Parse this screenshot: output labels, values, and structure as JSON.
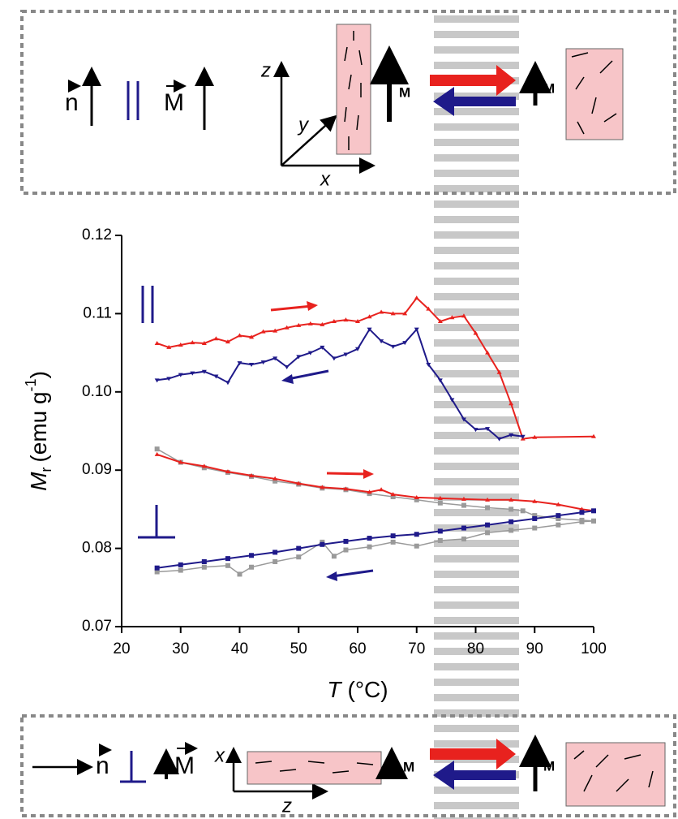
{
  "chart_data": {
    "type": "line",
    "xlabel": {
      "symbol": "T",
      "unit": "(°C)"
    },
    "ylabel": {
      "symbol": "M",
      "sub": "r",
      "unit": "(emu g",
      "sup": "-1",
      "close": ")"
    },
    "xlim": [
      20,
      100
    ],
    "ylim": [
      0.07,
      0.12
    ],
    "xticks": [
      20,
      30,
      40,
      50,
      60,
      70,
      80,
      90,
      100
    ],
    "yticks": [
      0.07,
      0.08,
      0.09,
      {
        "value": 0.1,
        "label": "0.10"
      },
      0.11,
      0.12
    ],
    "series": [
      {
        "color": "#e8221e",
        "marker": "triangle",
        "x": [
          26,
          28,
          30,
          32,
          34,
          36,
          38,
          40,
          42,
          44,
          46,
          48,
          50,
          52,
          54,
          56,
          58,
          60,
          62,
          64,
          66,
          68,
          70,
          72,
          74,
          76,
          78,
          80,
          82,
          84,
          86,
          88,
          90,
          100
        ],
        "values": [
          0.1062,
          0.1057,
          0.106,
          0.1063,
          0.1062,
          0.1068,
          0.1064,
          0.1072,
          0.107,
          0.1077,
          0.1078,
          0.1082,
          0.1085,
          0.1087,
          0.1086,
          0.109,
          0.1092,
          0.109,
          0.1096,
          0.1102,
          0.11,
          0.11,
          0.112,
          0.1106,
          0.109,
          0.1095,
          0.1097,
          0.1075,
          0.105,
          0.1025,
          0.0985,
          0.094,
          0.0942,
          0.0943
        ]
      },
      {
        "color": "#1f1a8a",
        "marker": "triangle-down",
        "x": [
          26,
          28,
          30,
          32,
          34,
          36,
          38,
          40,
          42,
          44,
          46,
          48,
          50,
          52,
          54,
          56,
          58,
          60,
          62,
          64,
          66,
          68,
          70,
          72,
          74,
          76,
          78,
          80,
          82,
          84,
          86,
          88
        ],
        "values": [
          0.1015,
          0.1017,
          0.1022,
          0.1024,
          0.1026,
          0.102,
          0.1012,
          0.1037,
          0.1035,
          0.1038,
          0.1043,
          0.1032,
          0.1045,
          0.105,
          0.1057,
          0.1043,
          0.1048,
          0.1055,
          0.108,
          0.1065,
          0.1058,
          0.1063,
          0.108,
          0.1035,
          0.1015,
          0.099,
          0.0965,
          0.0952,
          0.0953,
          0.094,
          0.0945,
          0.0943
        ]
      },
      {
        "color": "#9a9a9a",
        "marker": "square",
        "x": [
          26,
          30,
          34,
          38,
          42,
          46,
          50,
          54,
          58,
          62,
          66,
          70,
          74,
          78,
          82,
          86,
          88,
          90,
          94,
          98,
          100
        ],
        "values": [
          0.0927,
          0.091,
          0.0903,
          0.0897,
          0.0892,
          0.0886,
          0.0882,
          0.0877,
          0.0875,
          0.087,
          0.0866,
          0.0862,
          0.0858,
          0.0855,
          0.0852,
          0.085,
          0.0848,
          0.0842,
          0.0838,
          0.0836,
          0.0835
        ]
      },
      {
        "color": "#9a9a9a",
        "marker": "square",
        "x": [
          26,
          30,
          34,
          38,
          40,
          42,
          46,
          50,
          54,
          56,
          58,
          62,
          66,
          70,
          74,
          78,
          82,
          86,
          90,
          94,
          98,
          100
        ],
        "values": [
          0.077,
          0.0772,
          0.0776,
          0.0778,
          0.0767,
          0.0776,
          0.0783,
          0.0789,
          0.0808,
          0.079,
          0.0798,
          0.0802,
          0.0808,
          0.0803,
          0.081,
          0.0812,
          0.082,
          0.0823,
          0.0826,
          0.083,
          0.0834,
          0.0835
        ]
      },
      {
        "color": "#e8221e",
        "marker": "triangle",
        "x": [
          26,
          30,
          34,
          38,
          42,
          46,
          50,
          54,
          58,
          62,
          64,
          66,
          70,
          74,
          78,
          82,
          86,
          90,
          94,
          98,
          100
        ],
        "values": [
          0.092,
          0.091,
          0.0905,
          0.0898,
          0.0893,
          0.0889,
          0.0883,
          0.0878,
          0.0876,
          0.0872,
          0.0875,
          0.0869,
          0.0865,
          0.0864,
          0.0863,
          0.0862,
          0.0862,
          0.086,
          0.0856,
          0.085,
          0.0848
        ]
      },
      {
        "color": "#1f1a8a",
        "marker": "square",
        "x": [
          26,
          30,
          34,
          38,
          42,
          46,
          50,
          54,
          58,
          62,
          66,
          70,
          74,
          78,
          82,
          86,
          90,
          94,
          98,
          100
        ],
        "values": [
          0.0775,
          0.0779,
          0.0783,
          0.0787,
          0.0791,
          0.0795,
          0.08,
          0.0805,
          0.0809,
          0.0813,
          0.0816,
          0.0818,
          0.0822,
          0.0826,
          0.083,
          0.0834,
          0.0838,
          0.0842,
          0.0846,
          0.0848
        ]
      }
    ]
  },
  "top_panel": {
    "n": "n",
    "M": "M",
    "axes": [
      "z",
      "y",
      "x"
    ],
    "field": [
      "M",
      "M"
    ]
  },
  "bottom_panel": {
    "n": "n",
    "M": "M",
    "axes": [
      "x",
      "z"
    ],
    "field": [
      "M",
      "M"
    ]
  }
}
